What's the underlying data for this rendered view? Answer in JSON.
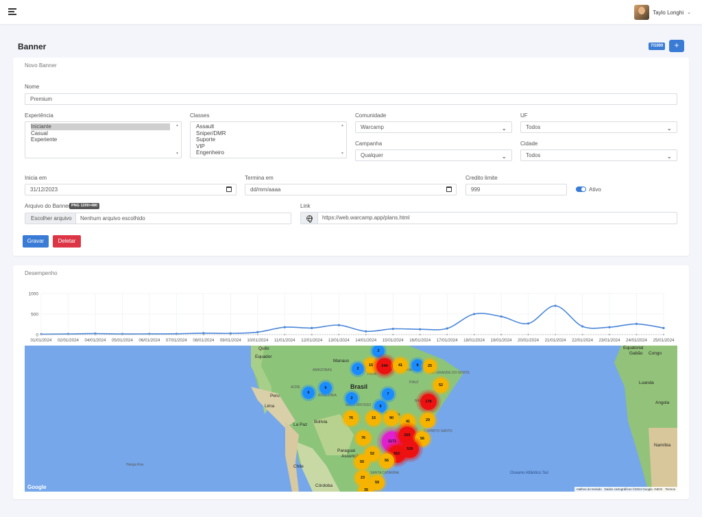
{
  "topbar": {
    "user_name": "Taylo Longhi",
    "caret": "⌄"
  },
  "page": {
    "title": "Banner",
    "counter": "7/1000",
    "add_label": "+"
  },
  "form": {
    "section_title": "Novo Banner",
    "nome_label": "Nome",
    "nome_value": "Premium",
    "experiencia_label": "Experiência",
    "experiencia_options": [
      "Iniciante",
      "Casual",
      "Experiente"
    ],
    "classes_label": "Classes",
    "classes_options": [
      "Assault",
      "Sniper/DMR",
      "Suporte",
      "VIP",
      "Engenheiro"
    ],
    "comunidade_label": "Comunidade",
    "comunidade_value": "Warcamp",
    "uf_label": "UF",
    "uf_value": "Todos",
    "campanha_label": "Campanha",
    "campanha_value": "Qualquer",
    "cidade_label": "Cidade",
    "cidade_value": "Todos",
    "inicia_label": "Inicia em",
    "inicia_value": "31/12/2023",
    "termina_label": "Termina em",
    "termina_value": "dd/mm/aaaa",
    "credito_label": "Credito limite",
    "credito_value": "999",
    "ativo_label": "Ativo",
    "arquivo_label": "Arquivo do Banner",
    "arquivo_badge": "PNG 1200×480",
    "arquivo_button": "Escolher arquivo",
    "arquivo_text": "Nenhum arquivo escolhido",
    "link_label": "Link",
    "link_value": "https://web.warcamp.app/plans.html",
    "gravar_label": "Gravar",
    "deletar_label": "Deletar"
  },
  "performance": {
    "section_title": "Desempenho"
  },
  "chart_data": {
    "type": "line",
    "categories": [
      "01/01/2024",
      "02/01/2024",
      "04/01/2024",
      "05/01/2024",
      "06/01/2024",
      "07/01/2024",
      "08/01/2024",
      "09/01/2024",
      "10/01/2024",
      "11/01/2024",
      "12/01/2024",
      "13/01/2024",
      "14/01/2024",
      "15/01/2024",
      "16/01/2024",
      "17/01/2024",
      "18/01/2024",
      "19/01/2024",
      "20/01/2024",
      "21/01/2024",
      "22/01/2024",
      "23/01/2024",
      "24/01/2024",
      "25/01/2024"
    ],
    "series": [
      {
        "values": [
          10,
          15,
          25,
          15,
          18,
          20,
          35,
          30,
          60,
          180,
          160,
          230,
          80,
          140,
          130,
          150,
          500,
          440,
          270,
          700,
          200,
          180,
          260,
          160
        ],
        "color": "#4a86d8"
      },
      {
        "values": [
          0,
          0,
          0,
          0,
          0,
          0,
          0,
          0,
          0,
          0,
          0,
          0,
          0,
          0,
          0,
          0,
          0,
          0,
          0,
          0,
          0,
          0,
          0,
          0
        ],
        "color": "#b0b0b0"
      }
    ],
    "ylim": [
      0,
      1000
    ],
    "yticks": [
      "1000",
      "500",
      "0"
    ],
    "grid": true
  },
  "map": {
    "labels": [
      "Quito",
      "Equador",
      "Manaus",
      "AMAZONAS",
      "PARÁ",
      "MARANHÃO",
      "Brasil",
      "Peru",
      "Lima",
      "La Paz",
      "Bolívia",
      "Paraguai",
      "Assunção",
      "Chile",
      "Córdoba",
      "Hanga Roa",
      "Equatorial",
      "Gabão",
      "Congo",
      "Luanda",
      "Angola",
      "Namíbia",
      "Oceano Atlântico Sul",
      "ACRE",
      "RONDÔNIA",
      "MATO GROSSO",
      "PIAUÍ",
      "BAHIA",
      "ESPÍRITO SANTO",
      "SANTA CATARINA",
      "RIO GRANDE DO NORTE",
      "Brasília"
    ],
    "clusters": [
      "2",
      "15",
      "244",
      "41",
      "8",
      "25",
      "2",
      "52",
      "6",
      "6",
      "2",
      "7",
      "8",
      "178",
      "76",
      "15",
      "90",
      "41",
      "29",
      "76",
      "1171",
      "269",
      "56",
      "52",
      "652",
      "526",
      "50",
      "56",
      "23",
      "59",
      "35"
    ],
    "footer": [
      "Atalhos do teclado",
      "Dados cartográficos ©2024 Google, INEGI",
      "Termos"
    ],
    "logo": "Google"
  }
}
